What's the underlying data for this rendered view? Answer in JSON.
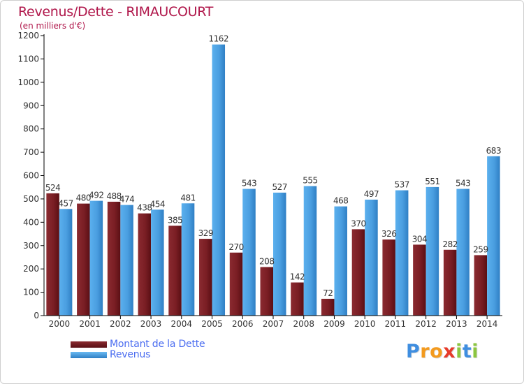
{
  "title": "Revenus/Dette - RIMAUCOURT",
  "subtitle": "(en milliers d'€)",
  "brand": {
    "text": "Proxiti",
    "letters": [
      {
        "ch": "P",
        "color": "#3f8ee0"
      },
      {
        "ch": "r",
        "color": "#f39a1e"
      },
      {
        "ch": "o",
        "color": "#f39a1e"
      },
      {
        "ch": "x",
        "color": "#e63a2a"
      },
      {
        "ch": "i",
        "color": "#8cc63f"
      },
      {
        "ch": "t",
        "color": "#3f8ee0"
      },
      {
        "ch": "i",
        "color": "#8cc63f"
      }
    ]
  },
  "colors": {
    "dette": "#7a1e24",
    "revenus": "#4a9ee0",
    "axis": "#000000",
    "grid": "#e6e6e6"
  },
  "legend": [
    {
      "label": "Montant de la Dette",
      "color": "#7a1e24"
    },
    {
      "label": "Revenus",
      "color": "#4a9ee0"
    }
  ],
  "chart_data": {
    "type": "bar",
    "title": "Revenus/Dette - RIMAUCOURT",
    "subtitle": "(en milliers d'€)",
    "xlabel": "",
    "ylabel": "",
    "ylim": [
      0,
      1200
    ],
    "yticks": [
      0,
      100,
      200,
      300,
      400,
      500,
      600,
      700,
      800,
      900,
      1000,
      1100,
      1200
    ],
    "grid": false,
    "legend_position": "bottom-left",
    "categories": [
      "2000",
      "2001",
      "2002",
      "2003",
      "2004",
      "2005",
      "2006",
      "2007",
      "2008",
      "2009",
      "2010",
      "2011",
      "2012",
      "2013",
      "2014"
    ],
    "series": [
      {
        "name": "Montant de la Dette",
        "values": [
          524,
          480,
          488,
          438,
          385,
          329,
          270,
          208,
          142,
          72,
          370,
          326,
          304,
          282,
          259
        ]
      },
      {
        "name": "Revenus",
        "values": [
          457,
          492,
          474,
          454,
          481,
          1162,
          543,
          527,
          555,
          468,
          497,
          537,
          551,
          543,
          683
        ]
      }
    ]
  }
}
